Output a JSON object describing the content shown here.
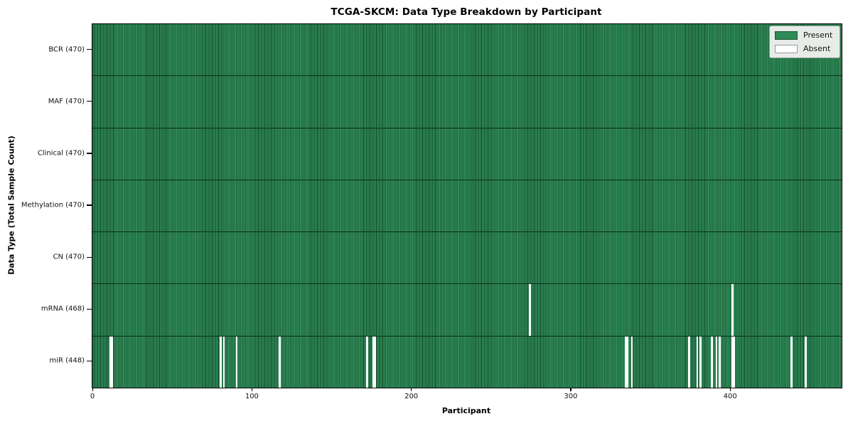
{
  "chart_data": {
    "type": "heatmap",
    "title": "TCGA-SKCM: Data Type Breakdown by Participant",
    "xlabel": "Participant",
    "ylabel": "Data Type (Total Sample Count)",
    "n_participants": 470,
    "x_ticks": [
      0,
      100,
      200,
      300,
      400
    ],
    "xlim": [
      -0.5,
      469.5
    ],
    "grid": false,
    "legend_position": "upper right",
    "legend": [
      {
        "label": "Present",
        "color": "#2e8b57"
      },
      {
        "label": "Absent",
        "color": "#ffffff"
      }
    ],
    "colors": {
      "present_fill": "#2e8b57",
      "bar_edge": "#0e2b1c",
      "absent_fill": "#ffffff",
      "legend_bg": "#e8ece8"
    },
    "rows": [
      {
        "label": "BCR (470)",
        "total": 470,
        "absent_participants": []
      },
      {
        "label": "MAF (470)",
        "total": 470,
        "absent_participants": []
      },
      {
        "label": "Clinical (470)",
        "total": 470,
        "absent_participants": []
      },
      {
        "label": "Methylation (470)",
        "total": 470,
        "absent_participants": []
      },
      {
        "label": "CN (470)",
        "total": 470,
        "absent_participants": []
      },
      {
        "label": "mRNA (468)",
        "total": 468,
        "absent_participants": [
          274,
          401
        ]
      },
      {
        "label": "miR (448)",
        "total": 448,
        "absent_participants": [
          11,
          12,
          80,
          82,
          90,
          117,
          172,
          176,
          177,
          334,
          335,
          338,
          374,
          379,
          381,
          388,
          391,
          393,
          401,
          402,
          438,
          447
        ]
      }
    ]
  }
}
